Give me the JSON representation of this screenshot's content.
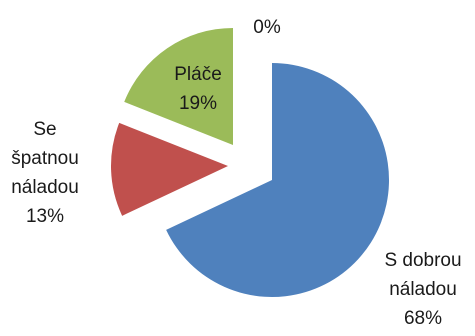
{
  "chart_data": {
    "type": "pie",
    "exploded": true,
    "start": "top, clockwise",
    "slices": [
      {
        "name": "S dobrou náladou",
        "label_lines": [
          "S dobrou",
          "náladou",
          "68%"
        ],
        "value": 68,
        "color": "#4f81bd"
      },
      {
        "name": "Se špatnou náladou",
        "label_lines": [
          "Se",
          "špatnou",
          "náladou",
          "13%"
        ],
        "value": 13,
        "color": "#c0504d"
      },
      {
        "name": "Pláče",
        "label_lines": [
          "Pláče",
          "19%"
        ],
        "value": 19,
        "color": "#9bbb59"
      },
      {
        "name": "",
        "label_lines": [
          "0%"
        ],
        "value": 0,
        "color": "#8064a2"
      }
    ],
    "legend": "none",
    "title": ""
  }
}
